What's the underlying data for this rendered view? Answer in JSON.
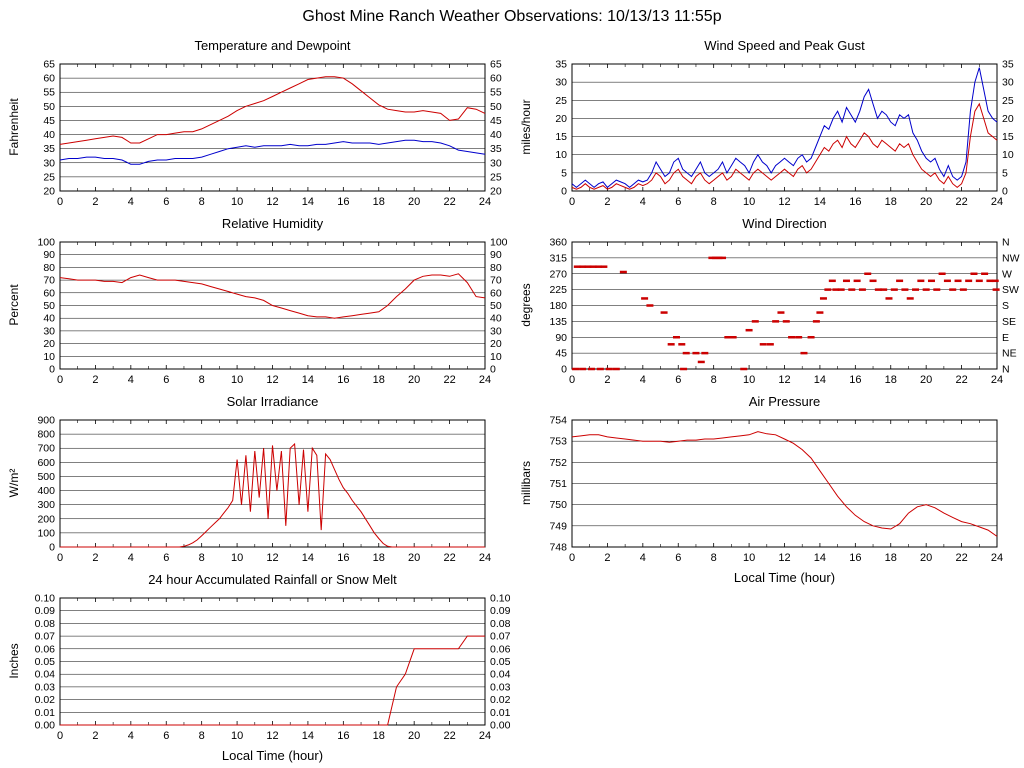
{
  "header": {
    "title": "Ghost Mine Ranch Weather Observations: 10/13/13 11:55p"
  },
  "x_axis": {
    "min": 0,
    "max": 24,
    "ticks": [
      0,
      2,
      4,
      6,
      8,
      10,
      12,
      14,
      16,
      18,
      20,
      22,
      24
    ],
    "label": "Local Time (hour)"
  },
  "colors": {
    "red": "#cc0000",
    "blue": "#0000cc"
  },
  "chart_data": [
    {
      "type": "line",
      "title": "Temperature and Dewpoint",
      "ylabel": "Fahrenheit",
      "xlabel": "",
      "ymin": 20,
      "ymax": 65,
      "yticks": [
        20,
        25,
        30,
        35,
        40,
        45,
        50,
        55,
        60,
        65
      ],
      "ytick_labels": [
        "20",
        "25",
        "30",
        "35",
        "40",
        "45",
        "50",
        "55",
        "60",
        "65"
      ],
      "right_labels": true,
      "series": [
        {
          "name": "temperature",
          "color": "#cc0000",
          "values": [
            36.5,
            37,
            37.5,
            38,
            38.5,
            39,
            39.5,
            39,
            37,
            37,
            38.5,
            40,
            40,
            40.5,
            41,
            41,
            42,
            43.5,
            45,
            46.5,
            48.5,
            50,
            51,
            52,
            53.5,
            55,
            56.5,
            58,
            59.5,
            60,
            60.5,
            60.5,
            60,
            58,
            55.5,
            53,
            50.5,
            49,
            48.5,
            48,
            48,
            48.5,
            48,
            47.5,
            45,
            45.5,
            49.5,
            49,
            47.5
          ]
        },
        {
          "name": "dewpoint",
          "color": "#0000cc",
          "values": [
            31,
            31.5,
            31.5,
            32,
            32,
            31.5,
            31.5,
            31,
            29.5,
            29.5,
            30.5,
            31,
            31,
            31.5,
            31.5,
            31.5,
            32,
            33,
            34,
            35,
            35.5,
            36,
            35.5,
            36,
            36,
            36,
            36.5,
            36,
            36,
            36.5,
            36.5,
            37,
            37.5,
            37,
            37,
            37,
            36.5,
            37,
            37.5,
            38,
            38,
            37.5,
            37.5,
            37,
            36,
            34.5,
            34,
            33.5,
            33
          ]
        }
      ]
    },
    {
      "type": "line",
      "title": "Wind Speed and Peak Gust",
      "ylabel": "miles/hour",
      "xlabel": "",
      "ymin": 0,
      "ymax": 35,
      "yticks": [
        0,
        5,
        10,
        15,
        20,
        25,
        30,
        35
      ],
      "ytick_labels": [
        "0",
        "5",
        "10",
        "15",
        "20",
        "25",
        "30",
        "35"
      ],
      "right_labels": true,
      "series": [
        {
          "name": "peak_gust",
          "color": "#0000cc",
          "values": [
            2,
            1,
            2,
            3,
            2,
            1,
            2,
            2.5,
            1,
            2,
            3,
            2.5,
            2,
            1,
            2,
            3,
            2.5,
            3,
            5,
            8,
            6,
            4,
            5,
            8,
            9,
            6,
            5,
            4,
            6,
            8,
            5,
            4,
            5,
            6,
            8,
            5,
            7,
            9,
            8,
            7,
            5,
            8,
            10,
            8,
            7,
            5,
            7,
            8,
            9,
            8,
            7,
            9,
            10,
            8,
            9,
            12,
            15,
            18,
            17,
            20,
            22,
            19,
            23,
            21,
            19,
            22,
            26,
            28,
            24,
            20,
            22,
            21,
            19,
            18,
            21,
            20,
            21,
            16,
            14,
            11,
            9,
            8,
            9,
            6,
            4,
            7,
            4,
            3,
            4,
            8,
            22,
            30,
            34,
            28,
            22,
            20,
            19
          ]
        },
        {
          "name": "wind_speed",
          "color": "#cc0000",
          "values": [
            1,
            0.5,
            1,
            2,
            1,
            0.5,
            1,
            1.5,
            0.5,
            1,
            2,
            1.5,
            1,
            0.5,
            1,
            2,
            1.5,
            2,
            3,
            5,
            4,
            2,
            3,
            5,
            6,
            4,
            3,
            2,
            4,
            5,
            3,
            2,
            3,
            4,
            5,
            3,
            4,
            6,
            5,
            4,
            3,
            5,
            6,
            5,
            4,
            3,
            4,
            5,
            6,
            5,
            4,
            6,
            7,
            5,
            6,
            8,
            10,
            12,
            11,
            13,
            14,
            12,
            15,
            13,
            12,
            14,
            16,
            15,
            13,
            12,
            14,
            13,
            12,
            11,
            13,
            12,
            13,
            10,
            8,
            6,
            5,
            4,
            5,
            3,
            2,
            4,
            2,
            1,
            2,
            5,
            15,
            22,
            24,
            20,
            16,
            15,
            14
          ]
        }
      ]
    },
    {
      "type": "line",
      "title": "Relative Humidity",
      "ylabel": "Percent",
      "xlabel": "",
      "ymin": 0,
      "ymax": 100,
      "yticks": [
        0,
        10,
        20,
        30,
        40,
        50,
        60,
        70,
        80,
        90,
        100
      ],
      "ytick_labels": [
        "0",
        "10",
        "20",
        "30",
        "40",
        "50",
        "60",
        "70",
        "80",
        "90",
        "100"
      ],
      "right_labels": true,
      "series": [
        {
          "name": "relative_humidity",
          "color": "#cc0000",
          "values": [
            72,
            71,
            70,
            70,
            70,
            69,
            69,
            68,
            72,
            74,
            72,
            70,
            70,
            70,
            69,
            68,
            67,
            65,
            63,
            61,
            59,
            57,
            56,
            54,
            50,
            48,
            46,
            44,
            42,
            41,
            41,
            40,
            41,
            42,
            43,
            44,
            45,
            50,
            57,
            63,
            70,
            73,
            74,
            74,
            73,
            75,
            68,
            57,
            56
          ]
        }
      ]
    },
    {
      "type": "scatter",
      "title": "Wind Direction",
      "ylabel": "degrees",
      "xlabel": "",
      "ymin": 0,
      "ymax": 360,
      "yticks": [
        0,
        45,
        90,
        135,
        180,
        225,
        270,
        315,
        360
      ],
      "ytick_labels": [
        "0",
        "45",
        "90",
        "135",
        "180",
        "225",
        "270",
        "315",
        "360"
      ],
      "right_labels": true,
      "ytick_labels_right": [
        "N",
        "NE",
        "E",
        "SE",
        "S",
        "SW",
        "W",
        "NW",
        "N"
      ],
      "point_color": "#cc0000",
      "points": [
        [
          0.3,
          290
        ],
        [
          0.6,
          290
        ],
        [
          0.9,
          290
        ],
        [
          1.2,
          290
        ],
        [
          1.5,
          290
        ],
        [
          1.8,
          290
        ],
        [
          0.2,
          0
        ],
        [
          0.6,
          0
        ],
        [
          1.1,
          0
        ],
        [
          1.6,
          0
        ],
        [
          2.1,
          0
        ],
        [
          2.5,
          0
        ],
        [
          2.9,
          275
        ],
        [
          4.1,
          200
        ],
        [
          4.4,
          180
        ],
        [
          5.2,
          160
        ],
        [
          5.6,
          70
        ],
        [
          5.9,
          90
        ],
        [
          6.2,
          70
        ],
        [
          6.45,
          45
        ],
        [
          6.3,
          0
        ],
        [
          7.0,
          45
        ],
        [
          7.3,
          20
        ],
        [
          7.5,
          45
        ],
        [
          7.9,
          315
        ],
        [
          8.1,
          315
        ],
        [
          8.3,
          315
        ],
        [
          8.5,
          315
        ],
        [
          8.8,
          90
        ],
        [
          9.1,
          90
        ],
        [
          9.7,
          0
        ],
        [
          10.0,
          110
        ],
        [
          10.35,
          135
        ],
        [
          10.8,
          70
        ],
        [
          11.2,
          70
        ],
        [
          11.5,
          135
        ],
        [
          11.8,
          160
        ],
        [
          12.1,
          135
        ],
        [
          12.4,
          90
        ],
        [
          12.8,
          90
        ],
        [
          13.1,
          45
        ],
        [
          13.5,
          90
        ],
        [
          13.8,
          135
        ],
        [
          14.0,
          160
        ],
        [
          14.2,
          200
        ],
        [
          14.45,
          225
        ],
        [
          14.7,
          250
        ],
        [
          14.9,
          225
        ],
        [
          15.2,
          225
        ],
        [
          15.5,
          250
        ],
        [
          15.8,
          225
        ],
        [
          16.1,
          250
        ],
        [
          16.4,
          225
        ],
        [
          16.7,
          270
        ],
        [
          17.0,
          250
        ],
        [
          17.3,
          225
        ],
        [
          17.6,
          225
        ],
        [
          17.9,
          200
        ],
        [
          18.2,
          225
        ],
        [
          18.5,
          250
        ],
        [
          18.8,
          225
        ],
        [
          19.1,
          200
        ],
        [
          19.4,
          225
        ],
        [
          19.7,
          250
        ],
        [
          20.0,
          225
        ],
        [
          20.3,
          250
        ],
        [
          20.6,
          225
        ],
        [
          20.9,
          270
        ],
        [
          21.2,
          250
        ],
        [
          21.5,
          225
        ],
        [
          21.8,
          250
        ],
        [
          22.1,
          225
        ],
        [
          22.4,
          250
        ],
        [
          22.7,
          270
        ],
        [
          23.0,
          250
        ],
        [
          23.3,
          270
        ],
        [
          23.6,
          250
        ],
        [
          23.9,
          250
        ],
        [
          23.95,
          225
        ]
      ]
    },
    {
      "type": "line",
      "title": "Solar Irradiance",
      "ylabel": "W/m²",
      "xlabel": "",
      "ymin": 0,
      "ymax": 900,
      "yticks": [
        0,
        100,
        200,
        300,
        400,
        500,
        600,
        700,
        800,
        900
      ],
      "ytick_labels": [
        "0",
        "100",
        "200",
        "300",
        "400",
        "500",
        "600",
        "700",
        "800",
        "900"
      ],
      "right_labels": false,
      "series": [
        {
          "name": "solar_irradiance",
          "color": "#cc0000",
          "values": [
            0,
            0,
            0,
            0,
            0,
            0,
            0,
            0,
            0,
            0,
            0,
            0,
            0,
            0,
            0,
            0,
            0,
            0,
            0,
            0,
            0,
            0,
            0,
            0,
            0,
            0,
            0,
            0,
            5,
            15,
            30,
            50,
            80,
            110,
            140,
            170,
            200,
            240,
            280,
            330,
            620,
            300,
            650,
            250,
            680,
            350,
            700,
            200,
            720,
            400,
            680,
            150,
            700,
            730,
            300,
            690,
            250,
            700,
            650,
            120,
            660,
            620,
            550,
            480,
            420,
            380,
            330,
            290,
            250,
            200,
            150,
            100,
            60,
            25,
            5,
            0,
            0,
            0,
            0,
            0,
            0,
            0,
            0,
            0,
            0,
            0,
            0,
            0,
            0,
            0,
            0,
            0,
            0,
            0,
            0,
            0,
            0
          ]
        }
      ]
    },
    {
      "type": "line",
      "title": "Air Pressure",
      "ylabel": "millibars",
      "xlabel": "Local Time (hour)",
      "ymin": 748,
      "ymax": 754,
      "yticks": [
        748,
        749,
        750,
        751,
        752,
        753,
        754
      ],
      "ytick_labels": [
        "748",
        "749",
        "750",
        "751",
        "752",
        "753",
        "754"
      ],
      "right_labels": false,
      "series": [
        {
          "name": "air_pressure",
          "color": "#cc0000",
          "values": [
            753.2,
            753.25,
            753.3,
            753.3,
            753.2,
            753.15,
            753.1,
            753.05,
            753.0,
            753.0,
            753.0,
            752.95,
            753.0,
            753.05,
            753.05,
            753.1,
            753.1,
            753.15,
            753.2,
            753.25,
            753.3,
            753.45,
            753.35,
            753.3,
            753.1,
            752.9,
            752.6,
            752.2,
            751.6,
            751.0,
            750.4,
            749.9,
            749.5,
            749.2,
            749.0,
            748.9,
            748.85,
            749.1,
            749.6,
            749.9,
            750.0,
            749.85,
            749.6,
            749.4,
            749.2,
            749.1,
            748.95,
            748.8,
            748.5
          ]
        }
      ]
    },
    {
      "type": "line",
      "title": "24 hour Accumulated Rainfall or Snow Melt",
      "ylabel": "Inches",
      "xlabel": "Local Time (hour)",
      "ymin": 0,
      "ymax": 0.1,
      "yticks": [
        0,
        0.01,
        0.02,
        0.03,
        0.04,
        0.05,
        0.06,
        0.07,
        0.08,
        0.09,
        0.1
      ],
      "ytick_labels": [
        "0.00",
        "0.01",
        "0.02",
        "0.03",
        "0.04",
        "0.05",
        "0.06",
        "0.07",
        "0.08",
        "0.09",
        "0.10"
      ],
      "right_labels": true,
      "series": [
        {
          "name": "accumulated_rainfall",
          "color": "#cc0000",
          "values": [
            0,
            0,
            0,
            0,
            0,
            0,
            0,
            0,
            0,
            0,
            0,
            0,
            0,
            0,
            0,
            0,
            0,
            0,
            0,
            0,
            0,
            0,
            0,
            0,
            0,
            0,
            0,
            0,
            0,
            0,
            0,
            0,
            0,
            0,
            0,
            0,
            0,
            0,
            0.03,
            0.04,
            0.06,
            0.06,
            0.06,
            0.06,
            0.06,
            0.06,
            0.07,
            0.07,
            0.07
          ]
        }
      ]
    }
  ]
}
